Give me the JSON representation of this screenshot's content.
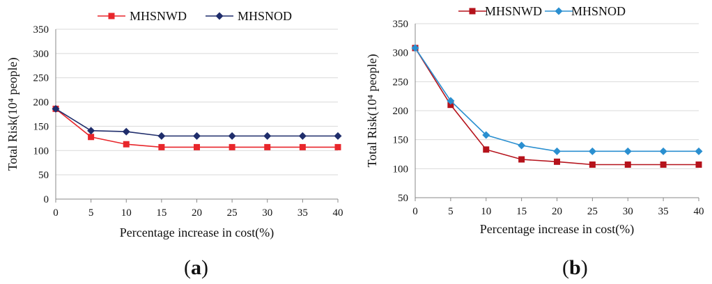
{
  "chart_data": [
    {
      "panel": "(a)",
      "type": "line",
      "x": [
        0,
        5,
        10,
        15,
        20,
        25,
        30,
        35,
        40
      ],
      "xlabel": "Percentage increase in cost(%)",
      "ylabel": "Total Risk(10⁴ people)",
      "ylim": [
        0,
        350
      ],
      "yticks": [
        0,
        50,
        100,
        150,
        200,
        250,
        300,
        350
      ],
      "grid": "horizontal",
      "legend": "top-center",
      "series": [
        {
          "name": "MHSNWD",
          "marker": "square",
          "color": "#e8262b",
          "values": [
            186,
            128,
            113,
            107,
            107,
            107,
            107,
            107,
            107
          ]
        },
        {
          "name": "MHSNOD",
          "marker": "diamond",
          "color": "#1f2d6b",
          "values": [
            186,
            141,
            139,
            130,
            130,
            130,
            130,
            130,
            130
          ]
        }
      ]
    },
    {
      "panel": "(b)",
      "type": "line",
      "x": [
        0,
        5,
        10,
        15,
        20,
        25,
        30,
        35,
        40
      ],
      "xlabel": "Percentage increase in cost(%)",
      "ylabel": "Total Risk(10⁴ people)",
      "ylim": [
        50,
        350
      ],
      "yticks": [
        50,
        100,
        150,
        200,
        250,
        300,
        350
      ],
      "grid": "horizontal",
      "legend": "top-center",
      "series": [
        {
          "name": "MHSNWD",
          "marker": "square",
          "color": "#b5121b",
          "values": [
            308,
            210,
            133,
            116,
            112,
            107,
            107,
            107,
            107
          ]
        },
        {
          "name": "MHSNOD",
          "marker": "diamond",
          "color": "#2a8fd0",
          "values": [
            308,
            217,
            158,
            140,
            130,
            130,
            130,
            130,
            130
          ]
        }
      ]
    }
  ]
}
